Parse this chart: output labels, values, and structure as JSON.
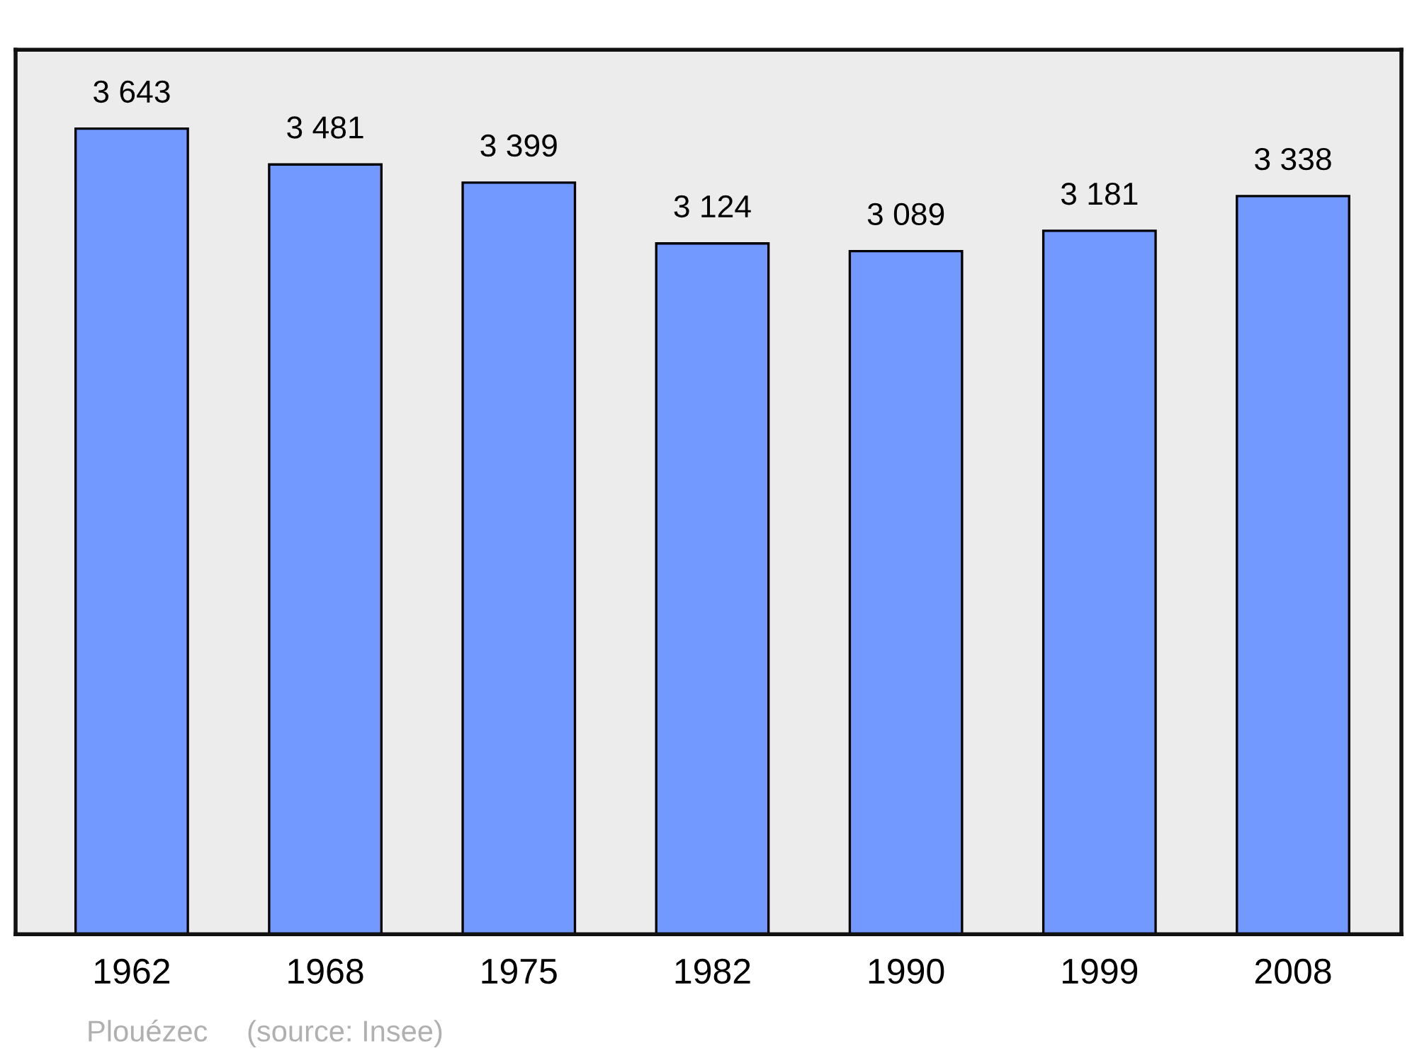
{
  "chart_data": {
    "type": "bar",
    "categories": [
      "1962",
      "1968",
      "1975",
      "1982",
      "1990",
      "1999",
      "2008"
    ],
    "values": [
      3643,
      3481,
      3399,
      3124,
      3089,
      3181,
      3338
    ],
    "value_labels": [
      "3 643",
      "3 481",
      "3 399",
      "3 124",
      "3 089",
      "3 181",
      "3 338"
    ],
    "color": "#7299ff",
    "ylim": [
      0,
      4000
    ],
    "tick_labels": "x",
    "grid": false,
    "annotations": [
      "Plouézec",
      "(source: Insee)"
    ]
  }
}
